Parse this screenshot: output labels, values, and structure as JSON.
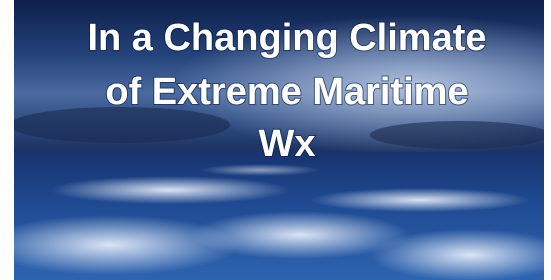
{
  "title": {
    "lines": [
      "In a Changing Climate",
      "of Extreme Maritime",
      "Wx"
    ]
  }
}
